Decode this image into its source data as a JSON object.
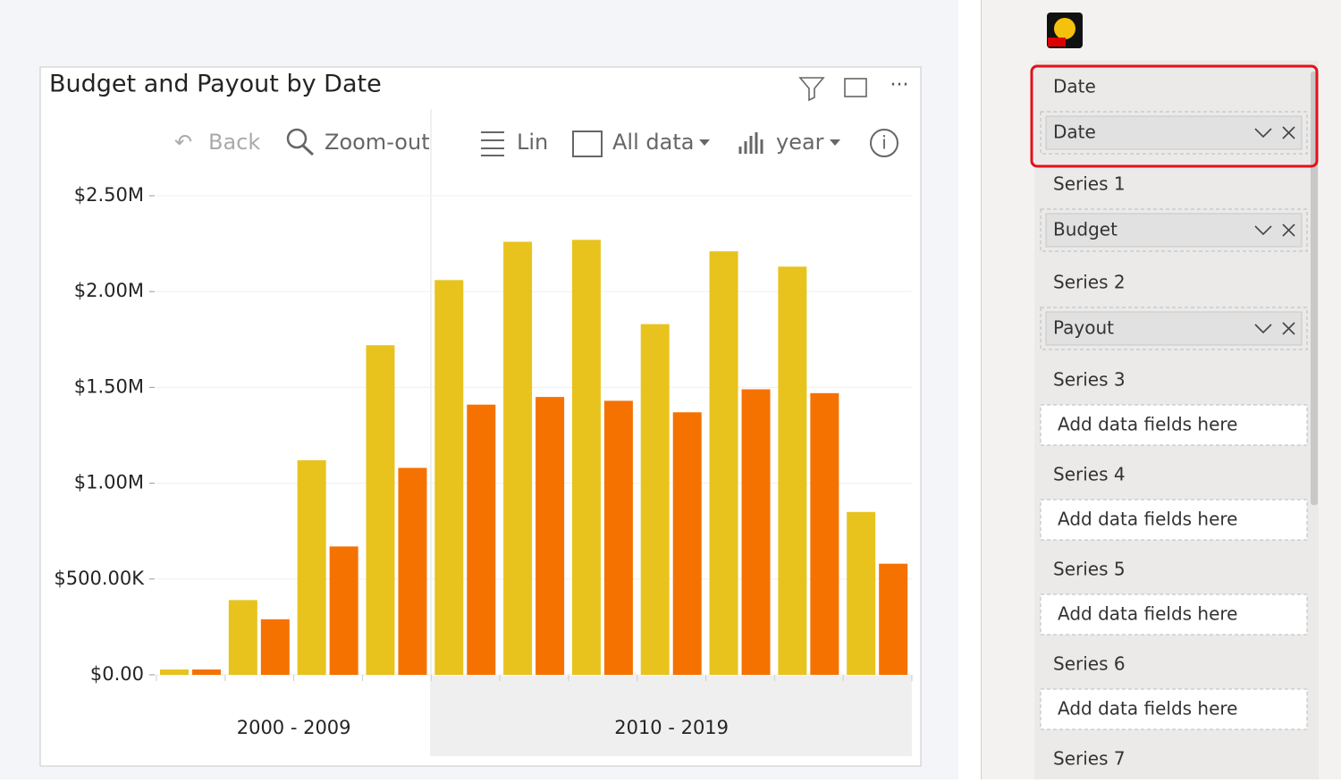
{
  "chart_data": {
    "type": "bar",
    "title": "Budget and Payout by Date",
    "categories": [
      null,
      null,
      null,
      null,
      null,
      null,
      null,
      null,
      null,
      null,
      null
    ],
    "category_groups": [
      "2000 - 2009",
      "2010 - 2019"
    ],
    "series": [
      {
        "name": "Budget",
        "color": "#e8c31e",
        "values": [
          28000,
          390000,
          1120000,
          1720000,
          2060000,
          2260000,
          2270000,
          1830000,
          2210000,
          2130000,
          850000
        ]
      },
      {
        "name": "Payout",
        "color": "#f57200",
        "values": [
          28000,
          290000,
          670000,
          1080000,
          1410000,
          1450000,
          1430000,
          1370000,
          1490000,
          1470000,
          580000
        ]
      }
    ],
    "ylim": [
      0,
      2500000
    ],
    "yticks": [
      {
        "value": 0,
        "label": "$0.00"
      },
      {
        "value": 500000,
        "label": "$500.00K"
      },
      {
        "value": 1000000,
        "label": "$1.00M"
      },
      {
        "value": 1500000,
        "label": "$1.50M"
      },
      {
        "value": 2000000,
        "label": "$2.00M"
      },
      {
        "value": 2500000,
        "label": "$2.50M"
      }
    ],
    "grid": true
  },
  "toolbar": {
    "back": "Back",
    "zoom_out": "Zoom-out",
    "scale": "Lin",
    "range": "All data",
    "period": "year"
  },
  "fields_panel": {
    "wells": [
      {
        "title": "Date",
        "field": "Date"
      },
      {
        "title": "Series 1",
        "field": "Budget"
      },
      {
        "title": "Series 2",
        "field": "Payout"
      },
      {
        "title": "Series 3",
        "placeholder": "Add data fields here"
      },
      {
        "title": "Series 4",
        "placeholder": "Add data fields here"
      },
      {
        "title": "Series 5",
        "placeholder": "Add data fields here"
      },
      {
        "title": "Series 6",
        "placeholder": "Add data fields here"
      },
      {
        "title": "Series 7"
      }
    ]
  }
}
